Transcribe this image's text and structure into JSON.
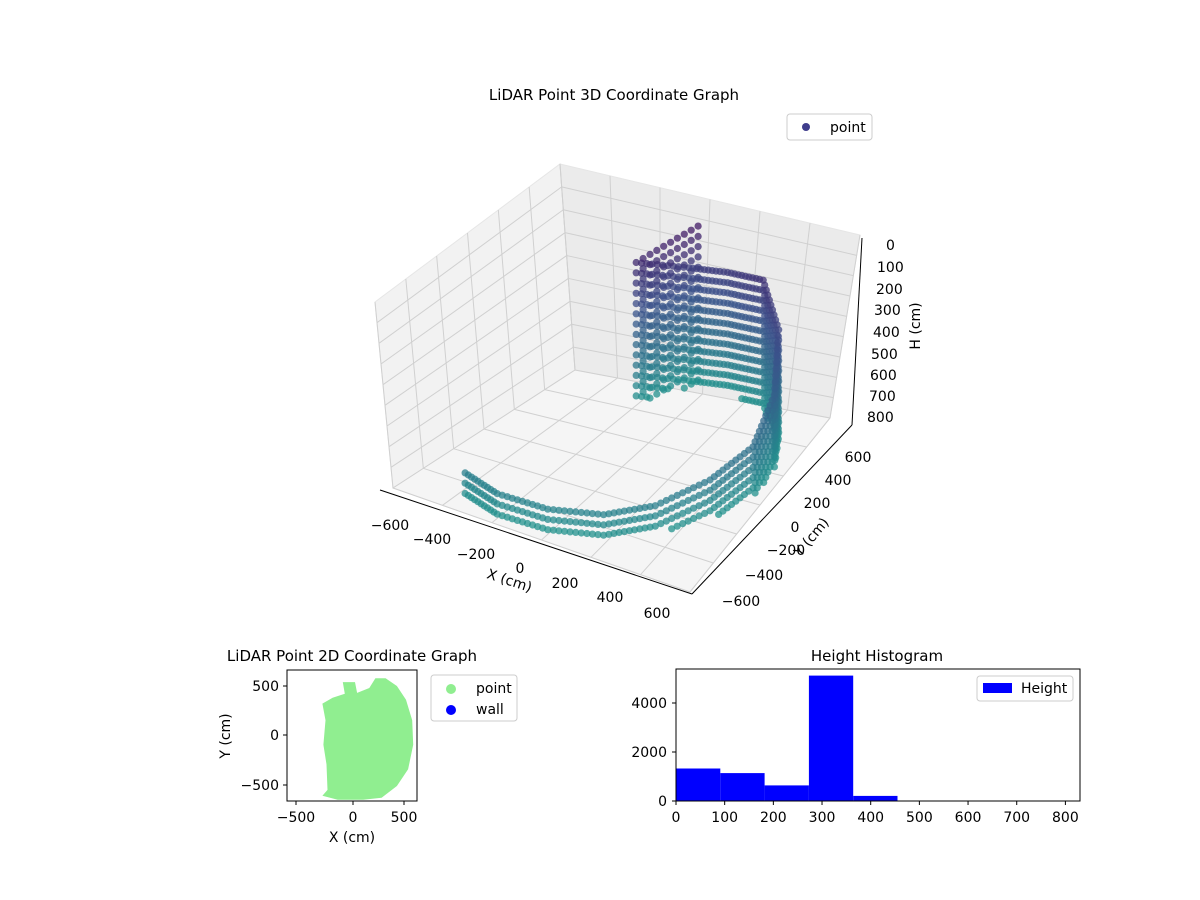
{
  "chart_data": [
    {
      "type": "scatter",
      "projection": "3d",
      "title": "LiDAR Point 3D Coordinate Graph",
      "xlabel": "X (cm)",
      "ylabel": "Y (cm)",
      "zlabel": "H (cm)",
      "xlim": [
        -650,
        650
      ],
      "ylim": [
        -650,
        650
      ],
      "zlim": [
        820,
        0
      ],
      "zaxis_inverted": true,
      "xticks": [
        "−600",
        "−400",
        "−200",
        "0",
        "200",
        "400",
        "600"
      ],
      "yticks": [
        "−600",
        "−400",
        "−200",
        "0",
        "200",
        "400",
        "600"
      ],
      "zticks": [
        "0",
        "100",
        "200",
        "300",
        "400",
        "500",
        "600",
        "700",
        "800"
      ],
      "grid": true,
      "legend": {
        "placement": "top-right",
        "entries": [
          {
            "label": "point",
            "color": "#3f3d8c"
          }
        ]
      },
      "colormap": "viridis",
      "series": [
        {
          "name": "point",
          "description_shape": "semicircular wall of points, radius ~550 cm, heights 0-800 cm, color by height",
          "approx_points": [
            {
              "x": -350,
              "y": -550,
              "h": 700
            },
            {
              "x": -200,
              "y": -580,
              "h": 720
            },
            {
              "x": 0,
              "y": -560,
              "h": 730
            },
            {
              "x": 200,
              "y": -500,
              "h": 720
            },
            {
              "x": 350,
              "y": -380,
              "h": 700
            },
            {
              "x": 480,
              "y": -200,
              "h": 650
            },
            {
              "x": 550,
              "y": 0,
              "h": 600
            },
            {
              "x": 530,
              "y": 200,
              "h": 500
            },
            {
              "x": 450,
              "y": 380,
              "h": 350
            },
            {
              "x": 320,
              "y": 500,
              "h": 250
            },
            {
              "x": 150,
              "y": 540,
              "h": 300
            },
            {
              "x": 0,
              "y": 520,
              "h": 320
            },
            {
              "x": -100,
              "y": 300,
              "h": 200
            },
            {
              "x": 50,
              "y": 550,
              "h": 120
            }
          ]
        }
      ]
    },
    {
      "type": "scatter",
      "title": "LiDAR Point 2D Coordinate Graph",
      "xlabel": "X (cm)",
      "ylabel": "Y (cm)",
      "xlim": [
        -650,
        650
      ],
      "ylim": [
        -650,
        650
      ],
      "xticks": [
        "−500",
        "0",
        "500"
      ],
      "yticks": [
        "500",
        "0",
        "−500"
      ],
      "legend": {
        "placement": "outside-right",
        "entries": [
          {
            "label": "point",
            "color": "#90ee90"
          },
          {
            "label": "wall",
            "color": "#0000ff"
          }
        ]
      },
      "series": [
        {
          "name": "point",
          "color": "#90ee90",
          "outline": [
            [
              -300,
              -620
            ],
            [
              -250,
              -560
            ],
            [
              -260,
              -300
            ],
            [
              -290,
              -100
            ],
            [
              -270,
              150
            ],
            [
              -300,
              320
            ],
            [
              -200,
              380
            ],
            [
              -80,
              420
            ],
            [
              -100,
              540
            ],
            [
              20,
              540
            ],
            [
              40,
              430
            ],
            [
              160,
              480
            ],
            [
              220,
              580
            ],
            [
              320,
              580
            ],
            [
              430,
              500
            ],
            [
              520,
              360
            ],
            [
              580,
              150
            ],
            [
              590,
              -100
            ],
            [
              540,
              -350
            ],
            [
              430,
              -520
            ],
            [
              280,
              -640
            ],
            [
              100,
              -660
            ],
            [
              -150,
              -660
            ],
            [
              -300,
              -620
            ]
          ]
        },
        {
          "name": "wall",
          "color": "#0000ff",
          "values": []
        }
      ]
    },
    {
      "type": "bar",
      "subtype": "histogram",
      "title": "Height Histogram",
      "xlim": [
        0,
        830
      ],
      "ylim": [
        0,
        5400
      ],
      "xticks": [
        "0",
        "100",
        "200",
        "300",
        "400",
        "500",
        "600",
        "700",
        "800"
      ],
      "yticks": [
        "0",
        "2000",
        "4000"
      ],
      "legend": {
        "placement": "top-right",
        "entries": [
          {
            "label": "Height",
            "color": "#0000ff"
          }
        ]
      },
      "bins": [
        {
          "x0": 0,
          "x1": 91,
          "count": 1330
        },
        {
          "x0": 91,
          "x1": 182,
          "count": 1140
        },
        {
          "x0": 182,
          "x1": 273,
          "count": 640
        },
        {
          "x0": 273,
          "x1": 364,
          "count": 5130
        },
        {
          "x0": 364,
          "x1": 455,
          "count": 210
        },
        {
          "x0": 455,
          "x1": 546,
          "count": 0
        },
        {
          "x0": 546,
          "x1": 637,
          "count": 0
        },
        {
          "x0": 637,
          "x1": 728,
          "count": 0
        },
        {
          "x0": 728,
          "x1": 819,
          "count": 0
        }
      ]
    }
  ]
}
